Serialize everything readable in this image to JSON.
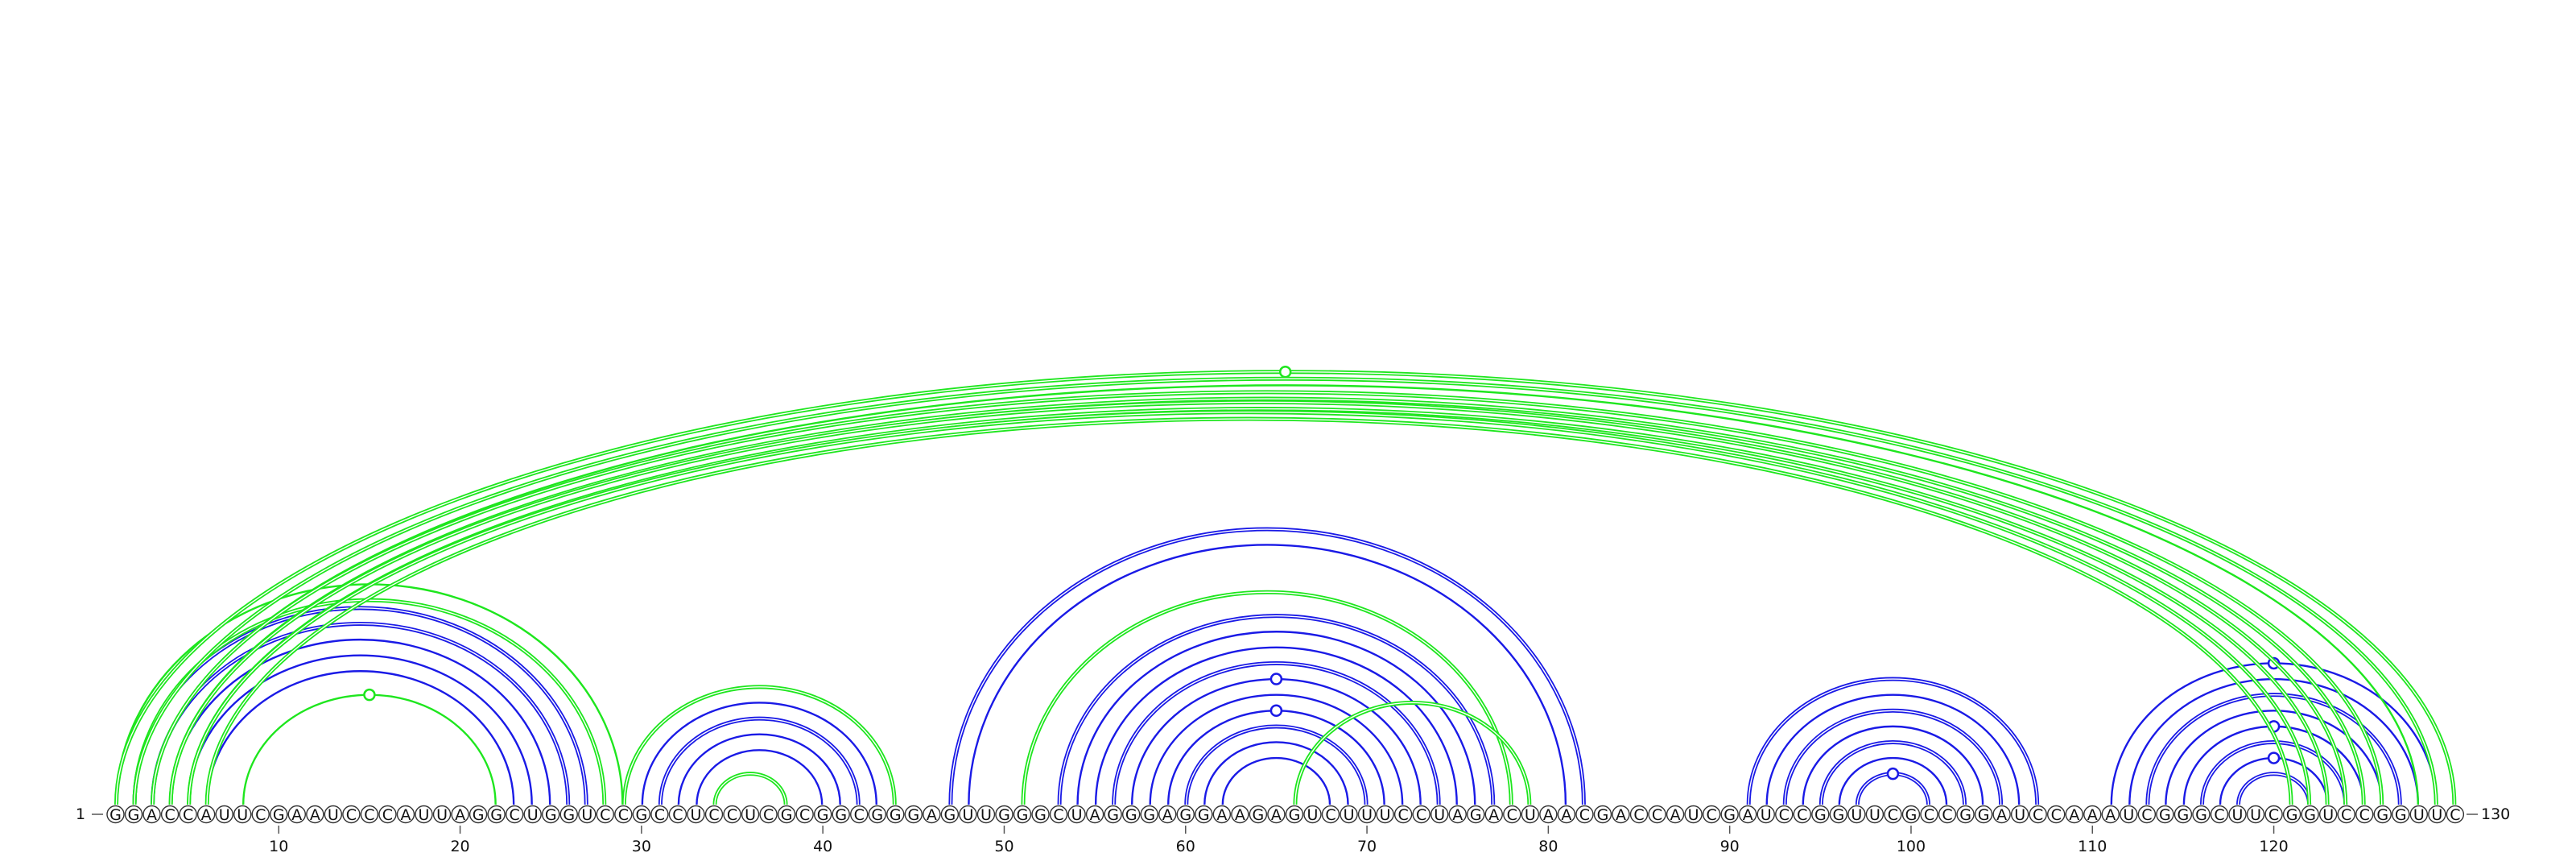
{
  "sequence": "GGACCAUUCGAAUCCCAUUAGGCUGGUCCGCCUCCUCGCGGCGGGAGUUGGGCUAGGGAGGAAGAGUCUUUCCUAGACUAACGACCAUCGAUCCGGUUCGCCGGAUCCAAAUCGGGCUUCGGUCCGGUUC",
  "start_label": "1",
  "end_label": "130",
  "ticks": [
    10,
    20,
    30,
    40,
    50,
    60,
    70,
    80,
    90,
    100,
    110,
    120
  ],
  "colors": {
    "blue": "#1a1ae6",
    "green": "#1ee61e",
    "background": "#ffffff"
  },
  "arcs": [
    {
      "i": 2,
      "j": 27,
      "color": "blue",
      "double": true
    },
    {
      "i": 3,
      "j": 26,
      "color": "blue",
      "double": true
    },
    {
      "i": 4,
      "j": 25,
      "color": "blue",
      "double": false
    },
    {
      "i": 5,
      "j": 24,
      "color": "blue",
      "double": false
    },
    {
      "i": 6,
      "j": 23,
      "color": "blue",
      "double": false
    },
    {
      "i": 8,
      "j": 22,
      "color": "green",
      "double": false,
      "marker": true
    },
    {
      "i": 2,
      "j": 28,
      "color": "green",
      "double": true
    },
    {
      "i": 1,
      "j": 29,
      "color": "green",
      "double": false
    },
    {
      "i": 29,
      "j": 44,
      "color": "green",
      "double": true
    },
    {
      "i": 30,
      "j": 43,
      "color": "blue",
      "double": false
    },
    {
      "i": 31,
      "j": 42,
      "color": "blue",
      "double": true
    },
    {
      "i": 32,
      "j": 41,
      "color": "blue",
      "double": false
    },
    {
      "i": 33,
      "j": 40,
      "color": "blue",
      "double": false
    },
    {
      "i": 34,
      "j": 38,
      "color": "green",
      "double": true
    },
    {
      "i": 47,
      "j": 82,
      "color": "blue",
      "double": true
    },
    {
      "i": 48,
      "j": 81,
      "color": "blue",
      "double": false
    },
    {
      "i": 51,
      "j": 78,
      "color": "green",
      "double": true
    },
    {
      "i": 53,
      "j": 77,
      "color": "blue",
      "double": true
    },
    {
      "i": 54,
      "j": 76,
      "color": "blue",
      "double": false
    },
    {
      "i": 55,
      "j": 75,
      "color": "blue",
      "double": false
    },
    {
      "i": 56,
      "j": 74,
      "color": "blue",
      "double": true
    },
    {
      "i": 57,
      "j": 73,
      "color": "blue",
      "double": false,
      "marker": true
    },
    {
      "i": 58,
      "j": 72,
      "color": "blue",
      "double": false
    },
    {
      "i": 59,
      "j": 71,
      "color": "blue",
      "double": false,
      "marker": true
    },
    {
      "i": 60,
      "j": 70,
      "color": "blue",
      "double": true
    },
    {
      "i": 61,
      "j": 69,
      "color": "blue",
      "double": false
    },
    {
      "i": 62,
      "j": 68,
      "color": "blue",
      "double": false
    },
    {
      "i": 66,
      "j": 79,
      "color": "green",
      "double": true
    },
    {
      "i": 91,
      "j": 107,
      "color": "blue",
      "double": true
    },
    {
      "i": 92,
      "j": 106,
      "color": "blue",
      "double": false
    },
    {
      "i": 93,
      "j": 105,
      "color": "blue",
      "double": true
    },
    {
      "i": 94,
      "j": 104,
      "color": "blue",
      "double": false
    },
    {
      "i": 95,
      "j": 103,
      "color": "blue",
      "double": true
    },
    {
      "i": 96,
      "j": 102,
      "color": "blue",
      "double": false
    },
    {
      "i": 97,
      "j": 101,
      "color": "blue",
      "double": true,
      "marker": true
    },
    {
      "i": 111,
      "j": 129,
      "color": "blue",
      "double": false,
      "marker": true
    },
    {
      "i": 112,
      "j": 128,
      "color": "blue",
      "double": false
    },
    {
      "i": 113,
      "j": 127,
      "color": "blue",
      "double": true
    },
    {
      "i": 114,
      "j": 126,
      "color": "blue",
      "double": false
    },
    {
      "i": 115,
      "j": 125,
      "color": "blue",
      "double": false,
      "marker": true
    },
    {
      "i": 116,
      "j": 124,
      "color": "blue",
      "double": true
    },
    {
      "i": 117,
      "j": 123,
      "color": "blue",
      "double": false,
      "marker": true
    },
    {
      "i": 118,
      "j": 122,
      "color": "blue",
      "double": true
    },
    {
      "i": 1,
      "j": 130,
      "color": "green",
      "double": true,
      "marker": true
    },
    {
      "i": 2,
      "j": 129,
      "color": "green",
      "double": true
    },
    {
      "i": 3,
      "j": 128,
      "color": "green",
      "double": false
    },
    {
      "i": 3,
      "j": 126,
      "color": "green",
      "double": true
    },
    {
      "i": 4,
      "j": 125,
      "color": "green",
      "double": true
    },
    {
      "i": 4,
      "j": 124,
      "color": "green",
      "double": true
    },
    {
      "i": 5,
      "j": 123,
      "color": "green",
      "double": true
    },
    {
      "i": 5,
      "j": 122,
      "color": "green",
      "double": true
    },
    {
      "i": 6,
      "j": 121,
      "color": "green",
      "double": true
    }
  ]
}
